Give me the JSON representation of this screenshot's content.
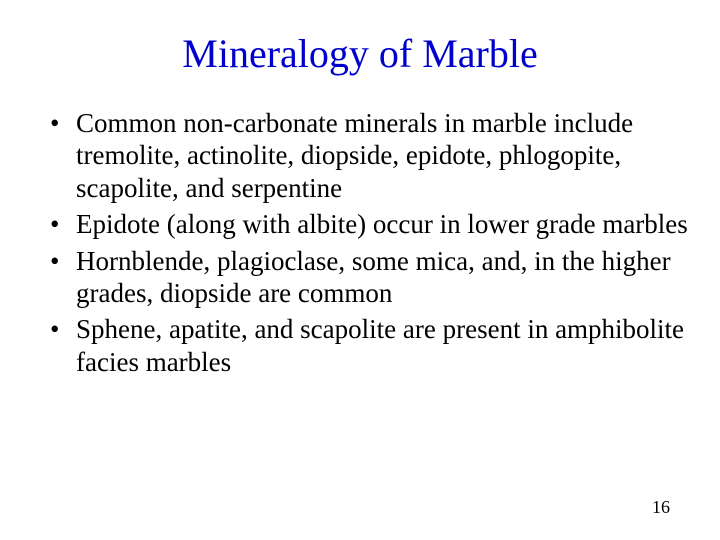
{
  "slide": {
    "title": "Mineralogy of Marble",
    "title_color": "#0000cc",
    "title_fontsize": 40,
    "body_fontsize": 27,
    "body_color": "#000000",
    "background_color": "#ffffff",
    "font_family": "Times New Roman",
    "bullets": [
      "Common non-carbonate minerals in marble include tremolite, actinolite, diopside, epidote, phlogopite, scapolite, and serpentine",
      "Epidote (along with albite) occur in lower grade marbles",
      "Hornblende, plagioclase, some mica, and, in the higher grades, diopside are common",
      "Sphene, apatite, and scapolite are present in amphibolite facies marbles"
    ],
    "page_number": "16"
  }
}
